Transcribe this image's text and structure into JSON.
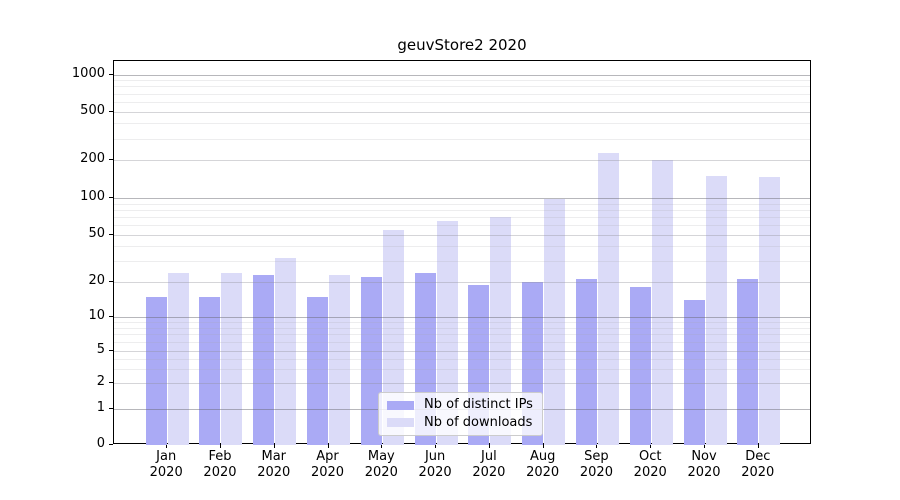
{
  "figure_title": "geuvStore2 2020",
  "chart_data": {
    "type": "bar",
    "title": "geuvStore2 2020",
    "xlabel": "",
    "ylabel": "",
    "yscale": "symlog",
    "grid": true,
    "y_ticks": [
      0,
      1,
      2,
      5,
      10,
      20,
      50,
      100,
      200,
      500,
      1000
    ],
    "ylim": [
      0,
      1300
    ],
    "categories": [
      "Jan",
      "Feb",
      "Mar",
      "Apr",
      "May",
      "Jun",
      "Jul",
      "Aug",
      "Sep",
      "Oct",
      "Nov",
      "Dec"
    ],
    "x_year_label": "2020",
    "series": [
      {
        "name": "Nb of distinct IPs",
        "color": "#aaaaf5",
        "values": [
          15,
          15,
          23,
          15,
          22,
          24,
          19,
          20,
          21,
          18,
          14,
          21
        ]
      },
      {
        "name": "Nb of downloads",
        "color": "#dbdbf8",
        "values": [
          24,
          24,
          32,
          23,
          55,
          65,
          70,
          98,
          230,
          200,
          150,
          148
        ]
      }
    ],
    "legend_position": "lower center",
    "legend_entries": [
      "Nb of distinct IPs",
      "Nb of downloads"
    ]
  }
}
